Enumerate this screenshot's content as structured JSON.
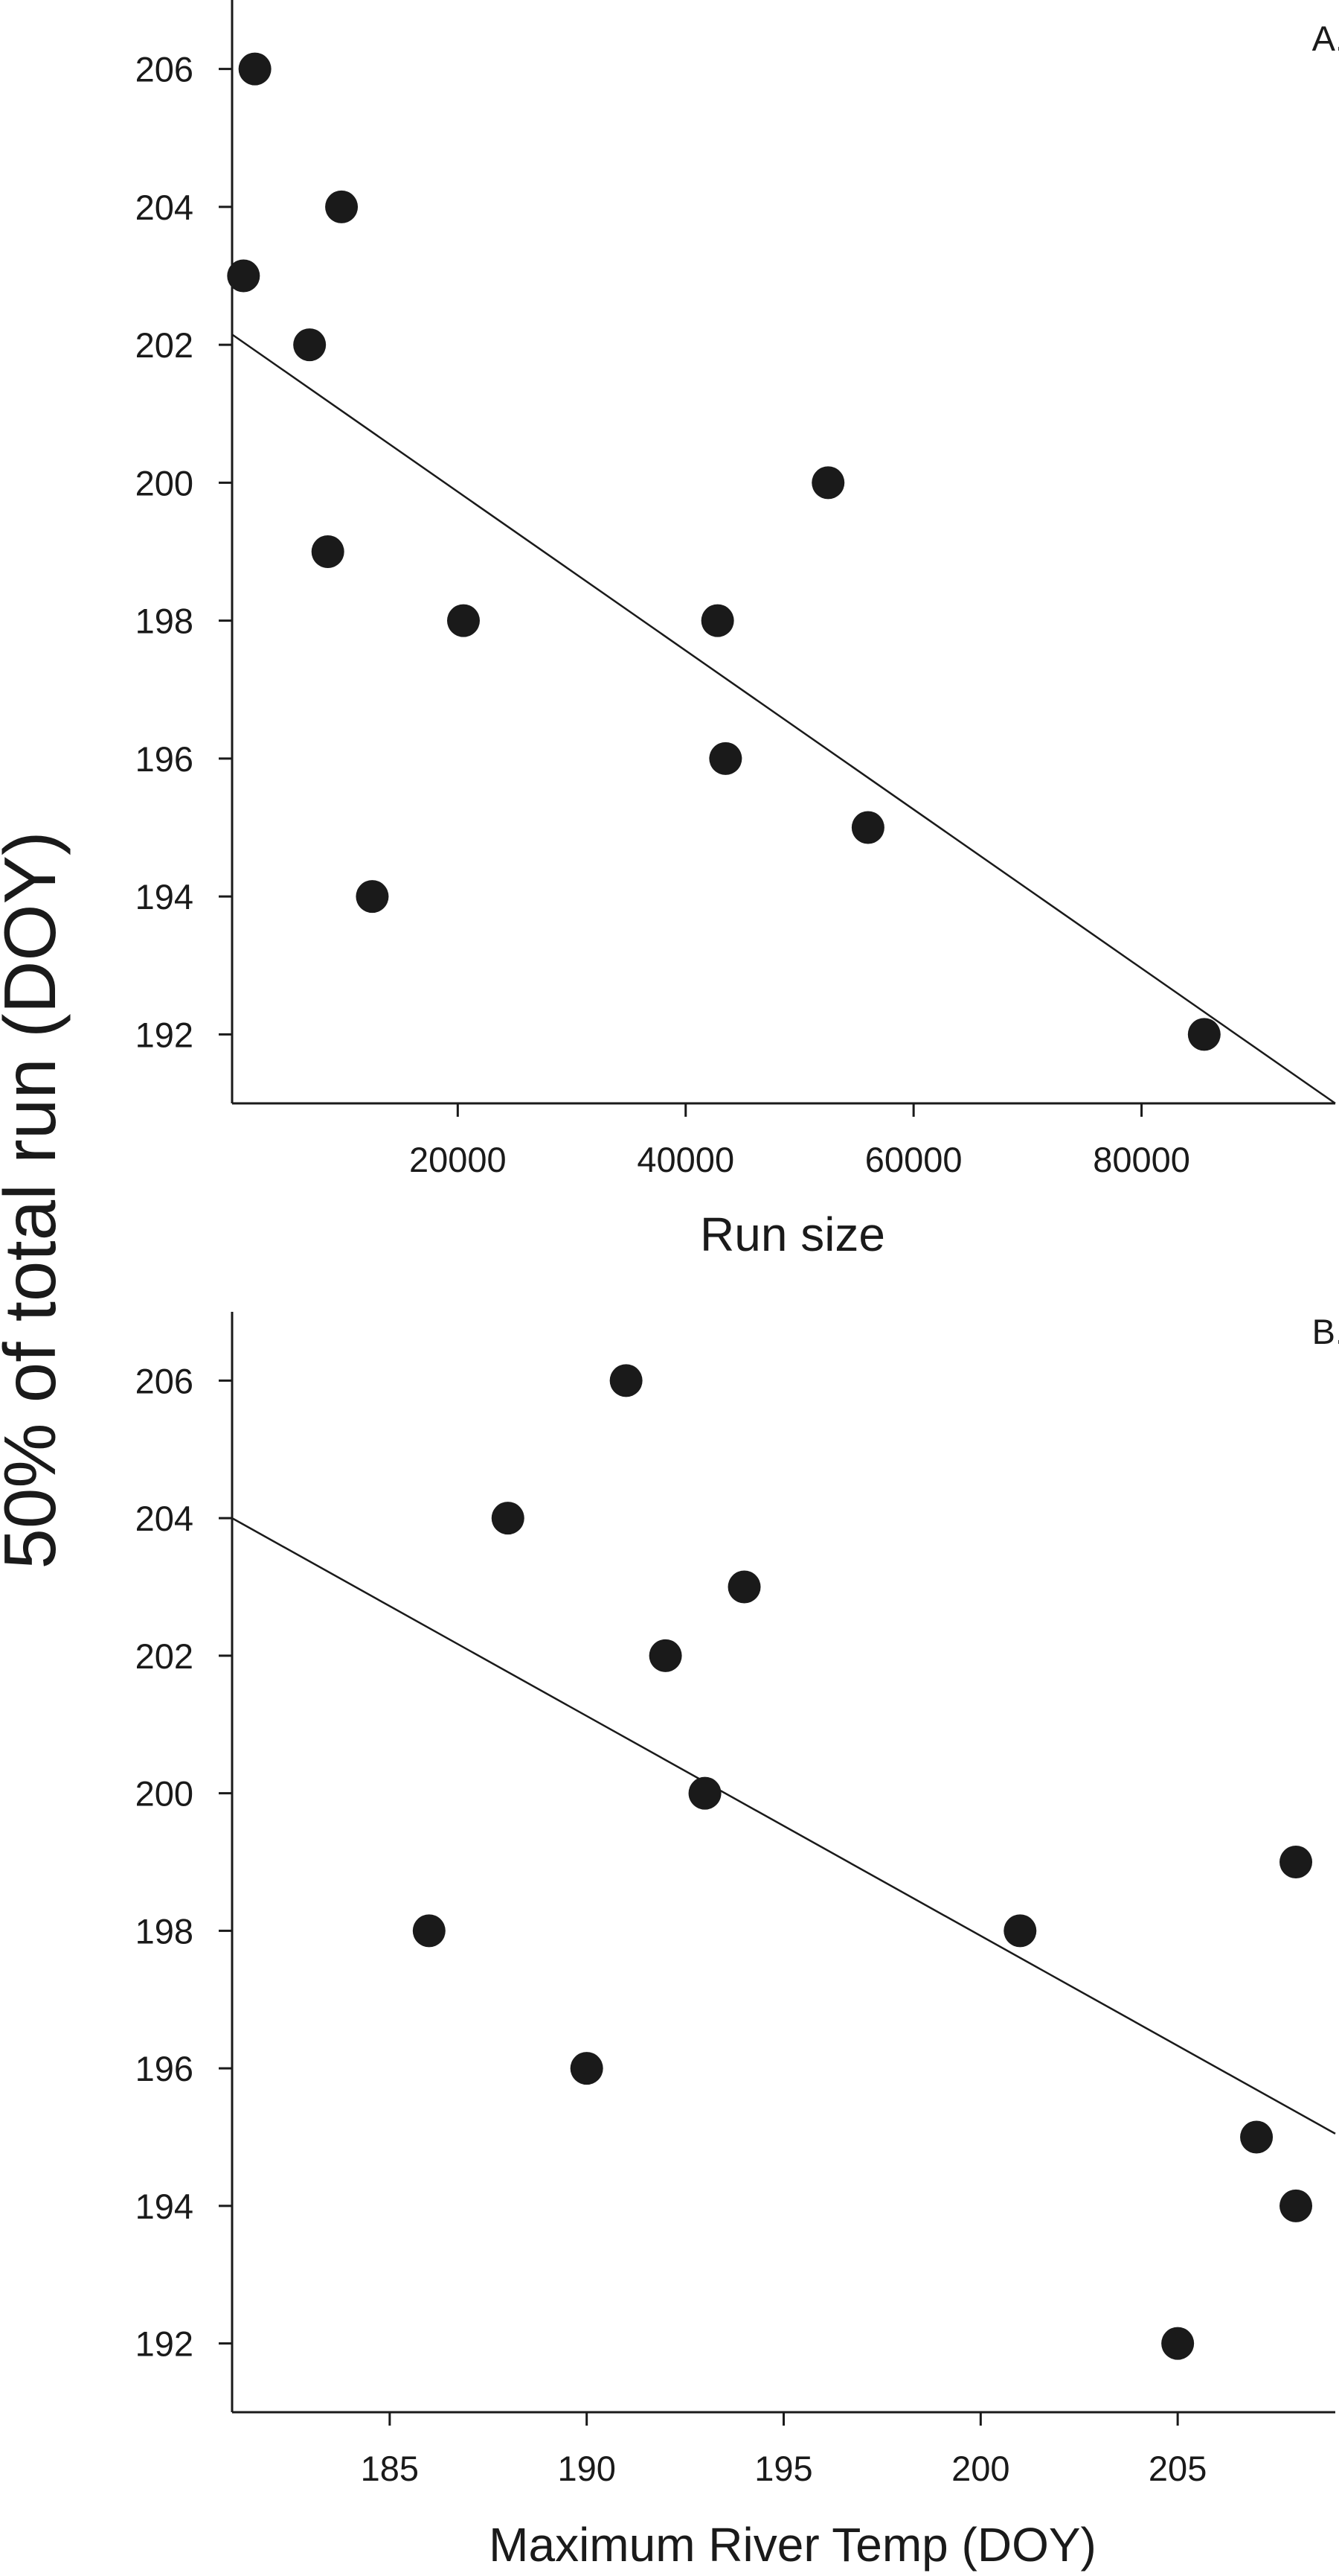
{
  "shared_ylabel": "50% of total run (DOY)",
  "chart_data": [
    {
      "type": "scatter",
      "panel_label": "A.",
      "xlabel": "Run size",
      "ylabel": "50% of total run (DOY)",
      "xlim": [
        200,
        97000
      ],
      "ylim": [
        191,
        207
      ],
      "xticks": [
        20000,
        40000,
        60000,
        80000
      ],
      "yticks": [
        192,
        194,
        196,
        198,
        200,
        202,
        204,
        206
      ],
      "grid": false,
      "points": [
        {
          "x": 2200,
          "y": 206
        },
        {
          "x": 1200,
          "y": 203
        },
        {
          "x": 9800,
          "y": 204
        },
        {
          "x": 7000,
          "y": 202
        },
        {
          "x": 8600,
          "y": 199
        },
        {
          "x": 20500,
          "y": 198
        },
        {
          "x": 12500,
          "y": 194
        },
        {
          "x": 42800,
          "y": 198
        },
        {
          "x": 43500,
          "y": 196
        },
        {
          "x": 52500,
          "y": 200
        },
        {
          "x": 56000,
          "y": 195
        },
        {
          "x": 85500,
          "y": 192
        }
      ],
      "trendline": {
        "x": [
          200,
          97000
        ],
        "y": [
          202.15,
          191.0
        ]
      }
    },
    {
      "type": "scatter",
      "panel_label": "B.",
      "xlabel": "Maximum River Temp (DOY)",
      "ylabel": "50% of total run (DOY)",
      "xlim": [
        181,
        209
      ],
      "ylim": [
        191,
        207
      ],
      "xticks": [
        185,
        190,
        195,
        200,
        205
      ],
      "yticks": [
        192,
        194,
        196,
        198,
        200,
        202,
        204,
        206
      ],
      "grid": false,
      "points": [
        {
          "x": 191,
          "y": 206
        },
        {
          "x": 188,
          "y": 204
        },
        {
          "x": 194,
          "y": 203
        },
        {
          "x": 192,
          "y": 202
        },
        {
          "x": 193,
          "y": 200
        },
        {
          "x": 186,
          "y": 198
        },
        {
          "x": 190,
          "y": 196
        },
        {
          "x": 201,
          "y": 198
        },
        {
          "x": 208,
          "y": 199
        },
        {
          "x": 207,
          "y": 195
        },
        {
          "x": 208,
          "y": 194
        },
        {
          "x": 205,
          "y": 192
        }
      ],
      "trendline": {
        "x": [
          181,
          209
        ],
        "y": [
          204.0,
          195.05
        ]
      }
    }
  ]
}
